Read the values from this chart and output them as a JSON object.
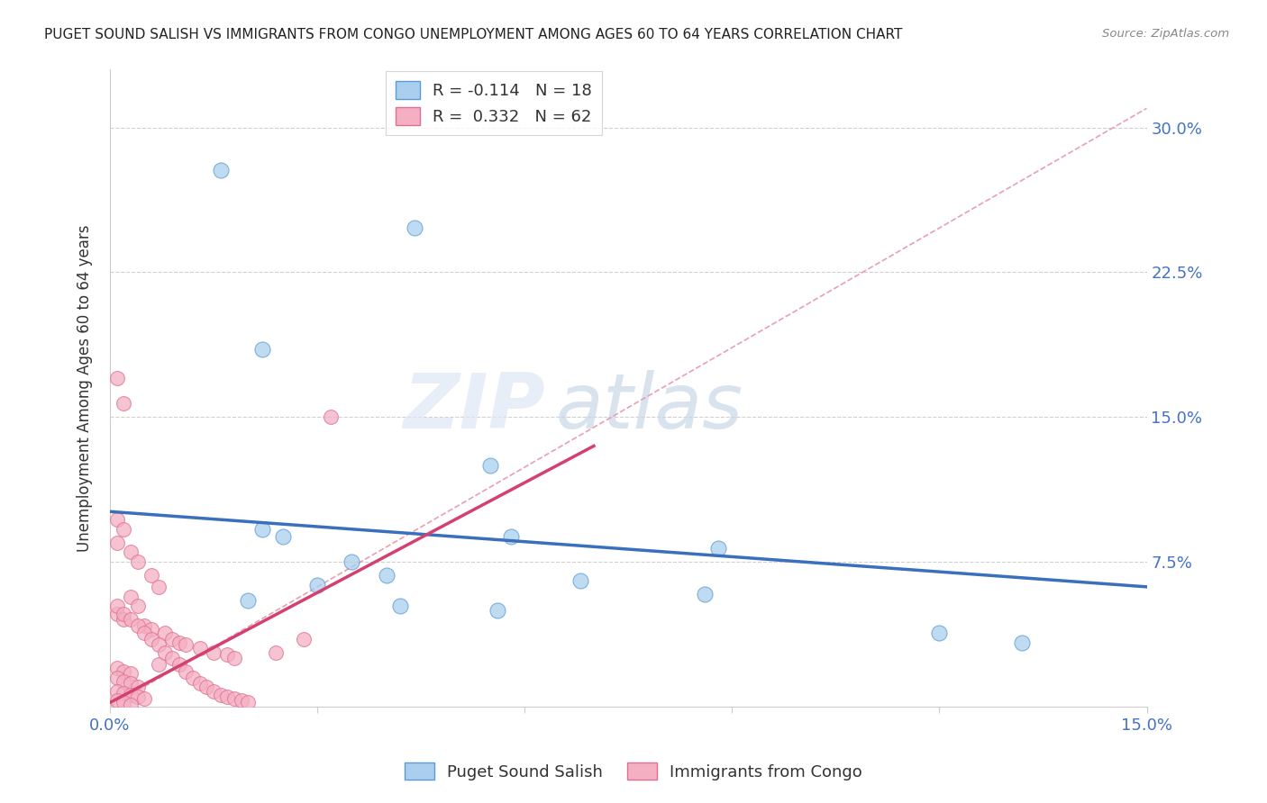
{
  "title": "PUGET SOUND SALISH VS IMMIGRANTS FROM CONGO UNEMPLOYMENT AMONG AGES 60 TO 64 YEARS CORRELATION CHART",
  "source": "Source: ZipAtlas.com",
  "ylabel": "Unemployment Among Ages 60 to 64 years",
  "xlim": [
    0.0,
    0.15
  ],
  "ylim": [
    0.0,
    0.33
  ],
  "xticks": [
    0.0,
    0.03,
    0.06,
    0.09,
    0.12,
    0.15
  ],
  "xticklabels": [
    "0.0%",
    "",
    "",
    "",
    "",
    "15.0%"
  ],
  "yticks": [
    0.0,
    0.075,
    0.15,
    0.225,
    0.3
  ],
  "yticklabels": [
    "",
    "7.5%",
    "15.0%",
    "22.5%",
    "30.0%"
  ],
  "blue_label": "Puget Sound Salish",
  "pink_label": "Immigrants from Congo",
  "blue_R": -0.114,
  "blue_N": 18,
  "pink_R": 0.332,
  "pink_N": 62,
  "blue_color": "#aacfee",
  "pink_color": "#f4afc3",
  "blue_edge_color": "#5b9bd5",
  "pink_edge_color": "#e07090",
  "blue_line_color": "#3a6fbe",
  "pink_line_color": "#d44070",
  "diag_line_color": "#e8a0b0",
  "blue_trend": [
    0.0,
    0.15,
    0.101,
    0.062
  ],
  "pink_trend": [
    0.0,
    0.07,
    0.002,
    0.135
  ],
  "blue_dots": [
    [
      0.016,
      0.278
    ],
    [
      0.044,
      0.248
    ],
    [
      0.022,
      0.185
    ],
    [
      0.055,
      0.125
    ],
    [
      0.022,
      0.092
    ],
    [
      0.025,
      0.088
    ],
    [
      0.035,
      0.075
    ],
    [
      0.058,
      0.088
    ],
    [
      0.04,
      0.068
    ],
    [
      0.068,
      0.065
    ],
    [
      0.03,
      0.063
    ],
    [
      0.02,
      0.055
    ],
    [
      0.042,
      0.052
    ],
    [
      0.056,
      0.05
    ],
    [
      0.086,
      0.058
    ],
    [
      0.088,
      0.082
    ],
    [
      0.12,
      0.038
    ],
    [
      0.132,
      0.033
    ]
  ],
  "pink_dots": [
    [
      0.001,
      0.17
    ],
    [
      0.002,
      0.157
    ],
    [
      0.001,
      0.097
    ],
    [
      0.032,
      0.15
    ],
    [
      0.002,
      0.092
    ],
    [
      0.001,
      0.085
    ],
    [
      0.003,
      0.08
    ],
    [
      0.004,
      0.075
    ],
    [
      0.006,
      0.068
    ],
    [
      0.007,
      0.062
    ],
    [
      0.003,
      0.057
    ],
    [
      0.004,
      0.052
    ],
    [
      0.001,
      0.048
    ],
    [
      0.002,
      0.045
    ],
    [
      0.005,
      0.042
    ],
    [
      0.006,
      0.04
    ],
    [
      0.008,
      0.038
    ],
    [
      0.009,
      0.035
    ],
    [
      0.01,
      0.033
    ],
    [
      0.011,
      0.032
    ],
    [
      0.013,
      0.03
    ],
    [
      0.015,
      0.028
    ],
    [
      0.017,
      0.027
    ],
    [
      0.018,
      0.025
    ],
    [
      0.007,
      0.022
    ],
    [
      0.001,
      0.02
    ],
    [
      0.002,
      0.018
    ],
    [
      0.003,
      0.017
    ],
    [
      0.001,
      0.015
    ],
    [
      0.002,
      0.013
    ],
    [
      0.003,
      0.012
    ],
    [
      0.004,
      0.01
    ],
    [
      0.001,
      0.008
    ],
    [
      0.002,
      0.007
    ],
    [
      0.003,
      0.006
    ],
    [
      0.004,
      0.005
    ],
    [
      0.005,
      0.004
    ],
    [
      0.001,
      0.003
    ],
    [
      0.002,
      0.002
    ],
    [
      0.003,
      0.001
    ],
    [
      0.001,
      0.052
    ],
    [
      0.002,
      0.048
    ],
    [
      0.003,
      0.045
    ],
    [
      0.004,
      0.042
    ],
    [
      0.005,
      0.038
    ],
    [
      0.006,
      0.035
    ],
    [
      0.007,
      0.032
    ],
    [
      0.008,
      0.028
    ],
    [
      0.009,
      0.025
    ],
    [
      0.01,
      0.022
    ],
    [
      0.011,
      0.018
    ],
    [
      0.012,
      0.015
    ],
    [
      0.013,
      0.012
    ],
    [
      0.014,
      0.01
    ],
    [
      0.015,
      0.008
    ],
    [
      0.016,
      0.006
    ],
    [
      0.017,
      0.005
    ],
    [
      0.018,
      0.004
    ],
    [
      0.019,
      0.003
    ],
    [
      0.02,
      0.002
    ],
    [
      0.024,
      0.028
    ],
    [
      0.028,
      0.035
    ]
  ],
  "watermark_zip": "ZIP",
  "watermark_atlas": "atlas",
  "background_color": "#ffffff",
  "grid_color": "#d0d0d0"
}
